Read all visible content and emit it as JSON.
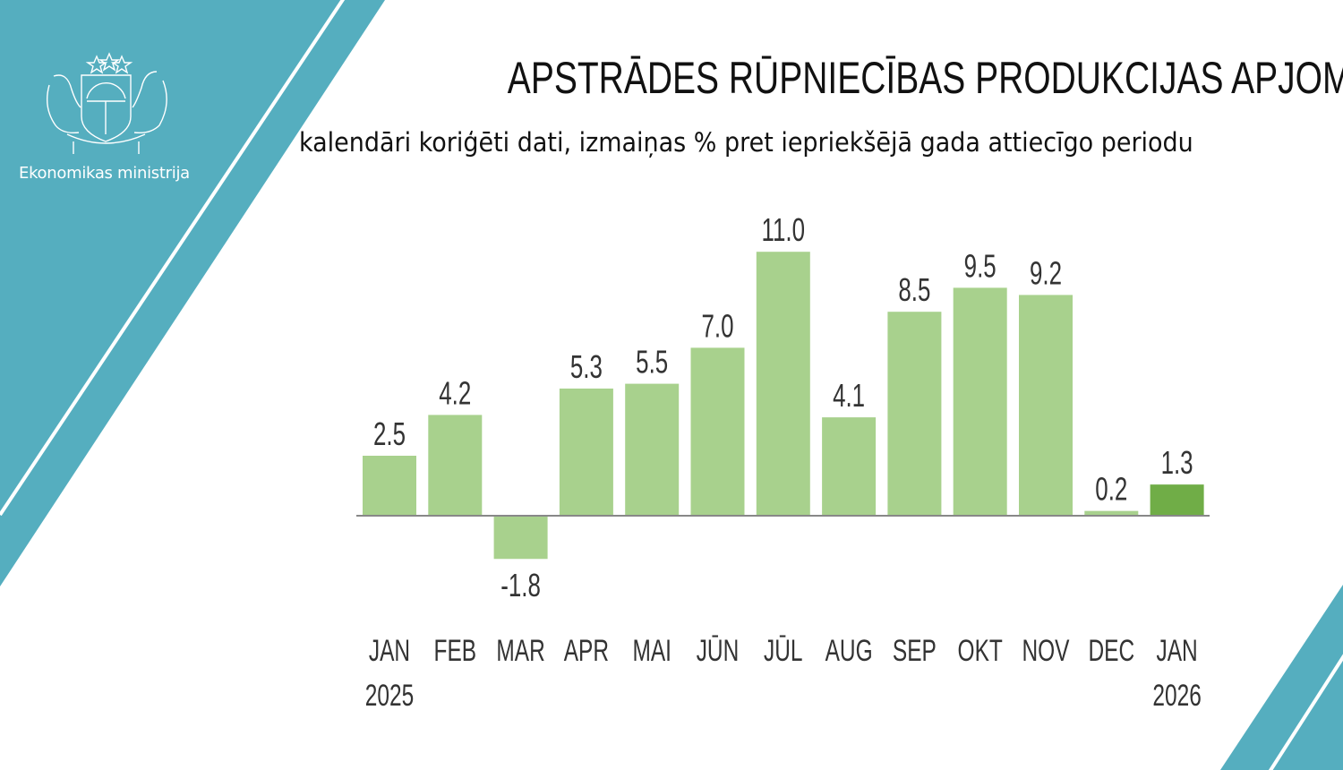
{
  "branding": {
    "organization": "Ekonomikas ministrija",
    "accent_color": "#55aebf"
  },
  "chart_data": {
    "type": "bar",
    "title": "APSTRĀDES RŪPNIECĪBAS PRODUKCIJAS APJOMI",
    "subtitle": "kalendāri koriģēti dati, izmaiņas % pret iepriekšējā gada attiecīgo periodu",
    "categories": [
      {
        "month": "JAN",
        "year": "2025"
      },
      {
        "month": "FEB",
        "year": ""
      },
      {
        "month": "MAR",
        "year": ""
      },
      {
        "month": "APR",
        "year": ""
      },
      {
        "month": "MAI",
        "year": ""
      },
      {
        "month": "JŪN",
        "year": ""
      },
      {
        "month": "JŪL",
        "year": ""
      },
      {
        "month": "AUG",
        "year": ""
      },
      {
        "month": "SEP",
        "year": ""
      },
      {
        "month": "OKT",
        "year": ""
      },
      {
        "month": "NOV",
        "year": ""
      },
      {
        "month": "DEC",
        "year": ""
      },
      {
        "month": "JAN",
        "year": "2026"
      }
    ],
    "values": [
      2.5,
      4.2,
      -1.8,
      5.3,
      5.5,
      7.0,
      11.0,
      4.1,
      8.5,
      9.5,
      9.2,
      0.2,
      1.3
    ],
    "value_labels": [
      "2.5",
      "4.2",
      "-1.8",
      "5.3",
      "5.5",
      "7.0",
      "11.0",
      "4.1",
      "8.5",
      "9.5",
      "9.2",
      "0.2",
      "1.3"
    ],
    "colors": {
      "default": "#a8d18d",
      "highlight": "#70ad47"
    },
    "highlight_index": 12,
    "xlabel": "",
    "ylabel": "",
    "grid": false,
    "ylim": [
      -1.8,
      11.0
    ]
  }
}
